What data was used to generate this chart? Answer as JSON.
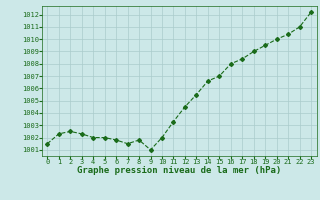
{
  "x": [
    0,
    1,
    2,
    3,
    4,
    5,
    6,
    7,
    8,
    9,
    10,
    11,
    12,
    13,
    14,
    15,
    16,
    17,
    18,
    19,
    20,
    21,
    22,
    23
  ],
  "y": [
    1001.5,
    1002.3,
    1002.5,
    1002.3,
    1002.0,
    1002.0,
    1001.8,
    1001.5,
    1001.8,
    1001.0,
    1002.0,
    1003.3,
    1004.5,
    1005.5,
    1006.6,
    1007.0,
    1008.0,
    1008.4,
    1009.0,
    1009.5,
    1010.0,
    1010.4,
    1011.0,
    1012.2
  ],
  "line_color": "#1a6b1a",
  "marker": "D",
  "marker_size": 2.0,
  "bg_color": "#cce8e8",
  "grid_color": "#aacccc",
  "text_color": "#1a6b1a",
  "xlabel": "Graphe pression niveau de la mer (hPa)",
  "xlabel_fontsize": 6.5,
  "ylabel_ticks": [
    1001,
    1002,
    1003,
    1004,
    1005,
    1006,
    1007,
    1008,
    1009,
    1010,
    1011,
    1012
  ],
  "ylim": [
    1000.5,
    1012.7
  ],
  "xlim": [
    -0.5,
    23.5
  ],
  "xticks": [
    0,
    1,
    2,
    3,
    4,
    5,
    6,
    7,
    8,
    9,
    10,
    11,
    12,
    13,
    14,
    15,
    16,
    17,
    18,
    19,
    20,
    21,
    22,
    23
  ],
  "tick_fontsize": 5.0,
  "linewidth": 0.8
}
